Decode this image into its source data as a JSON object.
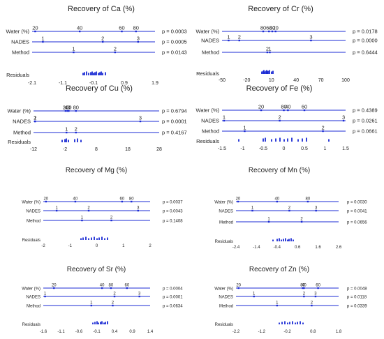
{
  "colors": {
    "line": "#1b2bd4",
    "dot": "#1b2bd4",
    "bar": "#1b2bd4",
    "text": "#222222"
  },
  "chart_data": [
    {
      "type": "dotplot",
      "title": "Recovery of Ca (%)",
      "ticks": [
        "-2.1",
        "-1.1",
        "-0.1",
        "0.9",
        "1.9"
      ],
      "xlim": [
        -2.1,
        1.9
      ],
      "factors": [
        {
          "name": "Water (%)",
          "p": "p = 0.0003",
          "levels": [
            {
              "label": "20",
              "x": -2.0
            },
            {
              "label": "40",
              "x": -0.55
            },
            {
              "label": "60",
              "x": 0.82
            },
            {
              "label": "80",
              "x": 1.28
            }
          ]
        },
        {
          "name": "NADES",
          "p": "p = 0.0005",
          "levels": [
            {
              "label": "1",
              "x": -1.75
            },
            {
              "label": "2",
              "x": 0.2
            },
            {
              "label": "3",
              "x": 1.35
            }
          ]
        },
        {
          "name": "Method",
          "p": "p = 0.0143",
          "levels": [
            {
              "label": "1",
              "x": -0.75
            },
            {
              "label": "2",
              "x": 0.6
            }
          ]
        }
      ],
      "residuals": [
        -0.45,
        -0.4,
        -0.32,
        -0.25,
        -0.2,
        -0.15,
        -0.1,
        -0.05,
        0.0,
        0.05,
        0.1,
        0.15,
        0.2,
        0.28
      ]
    },
    {
      "type": "dotplot",
      "title": "Recovery of Cr (%)",
      "ticks": [
        "-50",
        "-20",
        "10",
        "40",
        "70",
        "100"
      ],
      "xlim": [
        -50,
        100
      ],
      "factors": [
        {
          "name": "Water (%)",
          "p": "p = 0.0178",
          "levels": [
            {
              "label": "80",
              "x": 0
            },
            {
              "label": "60",
              "x": 7
            },
            {
              "label": "40",
              "x": 11
            },
            {
              "label": "20",
              "x": 15
            }
          ]
        },
        {
          "name": "NADES",
          "p": "p = 0.0000",
          "levels": [
            {
              "label": "1",
              "x": -42
            },
            {
              "label": "2",
              "x": -29
            },
            {
              "label": "3",
              "x": 58
            }
          ]
        },
        {
          "name": "Method",
          "p": "p = 0.6444",
          "levels": [
            {
              "label": "2",
              "x": 5
            },
            {
              "label": "1",
              "x": 8
            }
          ]
        }
      ],
      "residuals": [
        -2,
        0,
        1,
        2,
        3,
        4,
        5,
        6,
        8,
        10,
        12
      ]
    },
    {
      "type": "dotplot",
      "title": "Recovery of Cu (%)",
      "ticks": [
        "-12",
        "-2",
        "8",
        "18",
        "28"
      ],
      "xlim": [
        -12,
        28
      ],
      "factors": [
        {
          "name": "Water (%)",
          "p": "p = 0.6794",
          "levels": [
            {
              "label": "20",
              "x": -1.8
            },
            {
              "label": "40",
              "x": -1.2
            },
            {
              "label": "60",
              "x": -0.8
            },
            {
              "label": "80",
              "x": 1.5
            }
          ]
        },
        {
          "name": "NADES",
          "p": "p = 0.0001",
          "levels": [
            {
              "label": "1",
              "x": -11.5
            },
            {
              "label": "2",
              "x": -11.5
            },
            {
              "label": "3",
              "x": 22
            }
          ]
        },
        {
          "name": "Method",
          "p": "p = 0.4167",
          "levels": [
            {
              "label": "1",
              "x": -1.5
            },
            {
              "label": "2",
              "x": 1.5
            }
          ]
        }
      ],
      "residuals": [
        -3,
        -2,
        -1.5,
        -1,
        1,
        2,
        3
      ]
    },
    {
      "type": "dotplot",
      "title": "Recovery of Fe (%)",
      "ticks": [
        "-1.5",
        "-1",
        "-0.5",
        "0",
        "0.5",
        "1",
        "1.5"
      ],
      "xlim": [
        -1.5,
        1.5
      ],
      "factors": [
        {
          "name": "Water (%)",
          "p": "p = 0.4389",
          "levels": [
            {
              "label": "20",
              "x": -0.55
            },
            {
              "label": "80",
              "x": 0.0
            },
            {
              "label": "40",
              "x": 0.1
            },
            {
              "label": "60",
              "x": 0.5
            }
          ]
        },
        {
          "name": "NADES",
          "p": "p = 0.0261",
          "levels": [
            {
              "label": "1",
              "x": -1.45
            },
            {
              "label": "2",
              "x": -0.1
            },
            {
              "label": "3",
              "x": 1.45
            }
          ]
        },
        {
          "name": "Method",
          "p": "p = 0.0661",
          "levels": [
            {
              "label": "1",
              "x": -0.95
            },
            {
              "label": "2",
              "x": 0.95
            }
          ]
        }
      ],
      "residuals": [
        -1.1,
        -0.5,
        -0.45,
        -0.3,
        -0.2,
        -0.1,
        0.0,
        0.1,
        0.2,
        0.35,
        0.45,
        0.55,
        1.1
      ]
    },
    {
      "type": "dotplot",
      "title": "Recovery of Mg (%)",
      "ticks": [
        "-2",
        "-1",
        "0",
        "1",
        "2"
      ],
      "xlim": [
        -2,
        2
      ],
      "factors": [
        {
          "name": "Water (%)",
          "p": "p = 0.0037",
          "levels": [
            {
              "label": "20",
              "x": -1.9
            },
            {
              "label": "40",
              "x": -0.8
            },
            {
              "label": "60",
              "x": 0.95
            },
            {
              "label": "80",
              "x": 1.3
            }
          ]
        },
        {
          "name": "NADES",
          "p": "p = 0.0043",
          "levels": [
            {
              "label": "1",
              "x": -1.5
            },
            {
              "label": "2",
              "x": -0.3
            },
            {
              "label": "3",
              "x": 1.55
            }
          ]
        },
        {
          "name": "Method",
          "p": "p = 0.1408",
          "levels": [
            {
              "label": "1",
              "x": -0.55
            },
            {
              "label": "2",
              "x": 0.55
            }
          ]
        }
      ],
      "residuals": [
        -0.6,
        -0.5,
        -0.4,
        -0.3,
        -0.2,
        -0.1,
        0.0,
        0.1,
        0.2,
        0.3,
        0.4
      ]
    },
    {
      "type": "dotplot",
      "title": "Recovery of Mn (%)",
      "ticks": [
        "-2.4",
        "-1.4",
        "-0.4",
        "0.6",
        "1.6",
        "2.6"
      ],
      "xlim": [
        -2.4,
        2.6
      ],
      "factors": [
        {
          "name": "Water (%)",
          "p": "p = 0.0030",
          "levels": [
            {
              "label": "20",
              "x": -2.3
            },
            {
              "label": "40",
              "x": -0.4
            },
            {
              "label": "80",
              "x": 1.1
            }
          ]
        },
        {
          "name": "NADES",
          "p": "p = 0.0041",
          "levels": [
            {
              "label": "1",
              "x": -1.6
            },
            {
              "label": "2",
              "x": 0.2
            },
            {
              "label": "3",
              "x": 1.5
            }
          ]
        },
        {
          "name": "Method",
          "p": "p = 0.0656",
          "levels": [
            {
              "label": "1",
              "x": -0.8
            },
            {
              "label": "2",
              "x": 0.8
            }
          ]
        }
      ],
      "residuals": [
        -0.6,
        -0.4,
        -0.3,
        -0.2,
        -0.1,
        0.0,
        0.1,
        0.2,
        0.3,
        0.4
      ]
    },
    {
      "type": "dotplot",
      "title": "Recovery of Sr (%)",
      "ticks": [
        "-1.6",
        "-1.1",
        "-0.6",
        "-0.1",
        "0.4",
        "0.9",
        "1.4"
      ],
      "xlim": [
        -1.6,
        1.4
      ],
      "factors": [
        {
          "name": "Water (%)",
          "p": "p = 0.0004",
          "levels": [
            {
              "label": "20",
              "x": -1.3
            },
            {
              "label": "40",
              "x": 0.05
            },
            {
              "label": "80",
              "x": 0.3
            },
            {
              "label": "60",
              "x": 0.75
            }
          ]
        },
        {
          "name": "NADES",
          "p": "p = 0.0001",
          "levels": [
            {
              "label": "1",
              "x": -1.55
            },
            {
              "label": "2",
              "x": 0.4
            },
            {
              "label": "3",
              "x": 1.1
            }
          ]
        },
        {
          "name": "Method",
          "p": "p = 0.0634",
          "levels": [
            {
              "label": "1",
              "x": -0.25
            },
            {
              "label": "2",
              "x": 0.35
            }
          ]
        }
      ],
      "residuals": [
        -0.2,
        -0.15,
        -0.1,
        -0.05,
        0.0,
        0.05,
        0.1,
        0.15,
        0.2
      ]
    },
    {
      "type": "dotplot",
      "title": "Recovery of Zn (%)",
      "ticks": [
        "-2.2",
        "-1.2",
        "-0.2",
        "0.8",
        "1.8"
      ],
      "xlim": [
        -2.2,
        1.8
      ],
      "factors": [
        {
          "name": "Water (%)",
          "p": "p = 0.0048",
          "levels": [
            {
              "label": "20",
              "x": -2.1
            },
            {
              "label": "80",
              "x": 0.4
            },
            {
              "label": "40",
              "x": 0.45
            },
            {
              "label": "60",
              "x": 1.0
            }
          ]
        },
        {
          "name": "NADES",
          "p": "p = 0.0118",
          "levels": [
            {
              "label": "1",
              "x": -1.5
            },
            {
              "label": "2",
              "x": 0.45
            },
            {
              "label": "3",
              "x": 0.9
            }
          ]
        },
        {
          "name": "Method",
          "p": "p = 0.0339",
          "levels": [
            {
              "label": "1",
              "x": -0.6
            },
            {
              "label": "2",
              "x": 0.75
            }
          ]
        }
      ],
      "residuals": [
        -0.5,
        -0.4,
        -0.3,
        -0.2,
        -0.1,
        0.0,
        0.1,
        0.2,
        0.3,
        0.4
      ]
    }
  ],
  "residuals_label": "Residuals"
}
